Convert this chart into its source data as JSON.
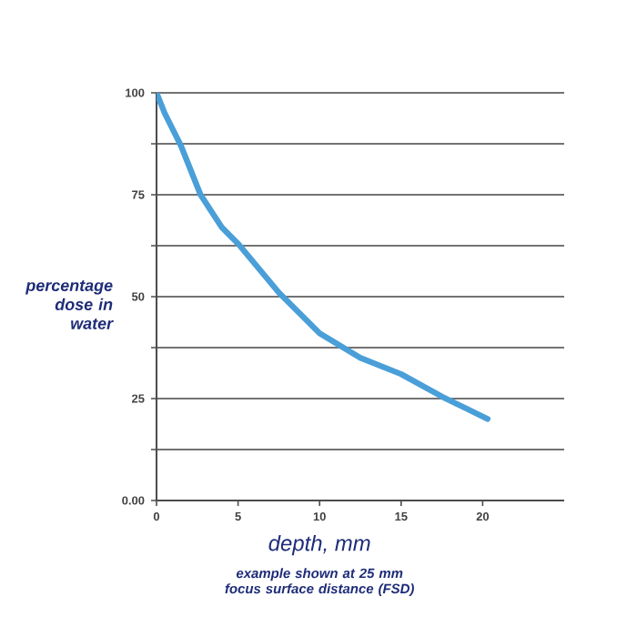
{
  "chart_data": {
    "type": "line",
    "xlabel": "depth, mm",
    "ylabel": "percentage dose in water",
    "annotations": [
      "example shown at 25 mm focus surface distance (FSD)"
    ],
    "xlim": [
      0,
      25
    ],
    "xticks": [
      0,
      5,
      10,
      15,
      20
    ],
    "ylim": [
      0,
      100
    ],
    "yticks": [
      {
        "value": 0,
        "label": "0.00"
      },
      {
        "value": 12.5,
        "label": null
      },
      25,
      {
        "value": 37.5,
        "label": null
      },
      50,
      {
        "value": 62.5,
        "label": null
      },
      75,
      {
        "value": 87.5,
        "label": null
      },
      100
    ],
    "grid": "y",
    "marker": "none",
    "line_style": "solid",
    "series": [
      {
        "color": "#4a9fd8",
        "x": [
          0,
          0.5,
          1.5,
          2.7,
          4,
          5,
          7.5,
          10,
          12.5,
          15,
          17.5,
          20.3
        ],
        "values": [
          100,
          95,
          87,
          75,
          67,
          63,
          51,
          41,
          35,
          31,
          25.5,
          20
        ]
      }
    ]
  }
}
